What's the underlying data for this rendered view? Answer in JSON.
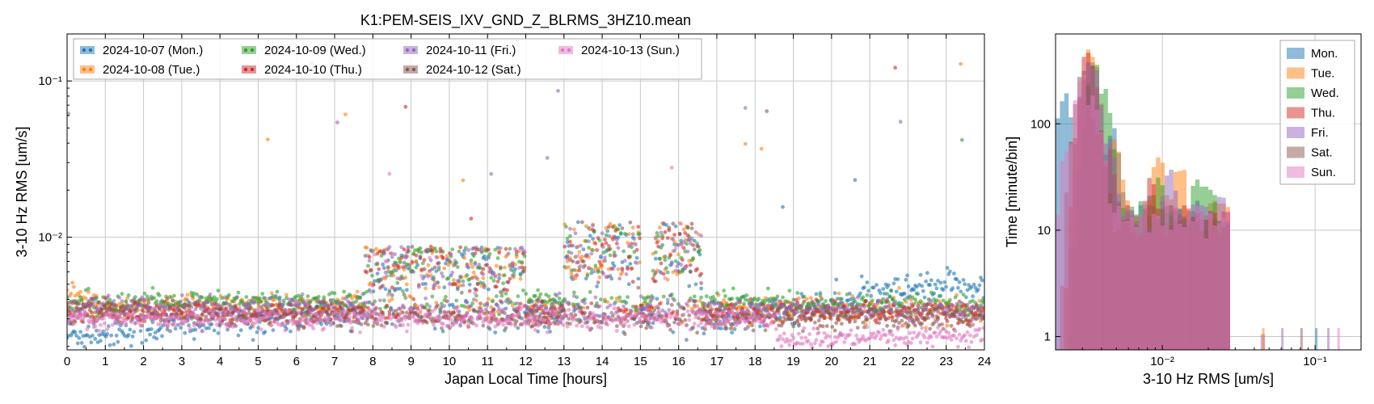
{
  "title": "K1:PEM-SEIS_IXV_GND_Z_BLRMS_3HZ10.mean",
  "colors": {
    "Mon": "#1f77b4",
    "Tue": "#ff7f0e",
    "Wed": "#2ca02c",
    "Thu": "#d62728",
    "Fri": "#9467bd",
    "Sat": "#8c564b",
    "Sun": "#e377c2"
  },
  "chart_data": [
    {
      "type": "scatter",
      "xlabel": "Japan Local Time [hours]",
      "ylabel": "3-10 Hz RMS [um/s]",
      "xlim": [
        0,
        24
      ],
      "ylim": [
        0.0019,
        0.2
      ],
      "yscale": "log",
      "x_ticks": [
        "0",
        "1",
        "2",
        "3",
        "4",
        "5",
        "6",
        "7",
        "8",
        "9",
        "10",
        "11",
        "12",
        "13",
        "14",
        "15",
        "16",
        "17",
        "18",
        "19",
        "20",
        "21",
        "22",
        "23",
        "24"
      ],
      "y_ticks": [
        {
          "value": 0.01,
          "label": "10⁻²"
        },
        {
          "value": 0.1,
          "label": "10⁻¹"
        }
      ],
      "grid": true,
      "legend_position": "top-left",
      "legend": [
        {
          "label": "2024-10-07 (Mon.)",
          "day": "Mon"
        },
        {
          "label": "2024-10-08 (Tue.)",
          "day": "Tue"
        },
        {
          "label": "2024-10-09 (Wed.)",
          "day": "Wed"
        },
        {
          "label": "2024-10-10 (Thu.)",
          "day": "Thu"
        },
        {
          "label": "2024-10-11 (Fri.)",
          "day": "Fri"
        },
        {
          "label": "2024-10-12 (Sat.)",
          "day": "Sat"
        },
        {
          "label": "2024-10-13 (Sun.)",
          "day": "Sun"
        }
      ],
      "series_profile": [
        {
          "day": "Mon",
          "segments": [
            [
              0,
              2.35
            ],
            [
              7.8,
              3.3
            ],
            [
              17,
              2.9
            ],
            [
              19.2,
              3.5
            ],
            [
              22,
              4.5
            ],
            [
              24,
              5.0
            ]
          ],
          "spread": 0.12,
          "active": 0.6
        },
        {
          "day": "Tue",
          "segments": [
            [
              0,
              4.6
            ],
            [
              0.7,
              3.6
            ],
            [
              24,
              3.4
            ]
          ],
          "spread": 0.1,
          "active": 0.7
        },
        {
          "day": "Wed",
          "segments": [
            [
              0,
              3.8
            ],
            [
              17,
              3.9
            ],
            [
              24,
              3.6
            ]
          ],
          "spread": 0.08,
          "active": 0.65
        },
        {
          "day": "Thu",
          "segments": [
            [
              0,
              3.3
            ],
            [
              24,
              3.3
            ]
          ],
          "spread": 0.08,
          "active": 0.6
        },
        {
          "day": "Fri",
          "segments": [
            [
              0,
              3.6
            ],
            [
              24,
              3.4
            ]
          ],
          "spread": 0.08,
          "active": 0.55
        },
        {
          "day": "Sat",
          "segments": [
            [
              0,
              3.3
            ],
            [
              8,
              3.0
            ],
            [
              24,
              3.0
            ]
          ],
          "spread": 0.08,
          "active": 0.15
        },
        {
          "day": "Sun",
          "segments": [
            [
              0,
              3.0
            ],
            [
              18.5,
              2.95
            ],
            [
              18.6,
              2.2
            ],
            [
              24,
              2.3
            ]
          ],
          "spread": 0.07,
          "active": 0.1
        }
      ],
      "active_windows": [
        [
          7.8,
          12.0,
          8.0
        ],
        [
          13.0,
          15.0,
          11.0
        ],
        [
          15.3,
          16.6,
          11.0
        ]
      ]
    },
    {
      "type": "bar",
      "xlabel": "3-10 Hz RMS [um/s]",
      "ylabel": "Time [minute/bin]",
      "xscale": "log",
      "yscale": "log",
      "xlim": [
        0.002,
        0.2
      ],
      "ylim": [
        0.75,
        700
      ],
      "x_ticks": [
        {
          "value": 0.01,
          "label": "10⁻²"
        },
        {
          "value": 0.1,
          "label": "10⁻¹"
        }
      ],
      "y_ticks": [
        {
          "value": 1,
          "label": "1"
        },
        {
          "value": 10,
          "label": "10"
        },
        {
          "value": 100,
          "label": "100"
        }
      ],
      "grid": true,
      "legend_position": "top-right",
      "legend": [
        "Mon.",
        "Tue.",
        "Wed.",
        "Thu.",
        "Fri.",
        "Sat.",
        "Sun."
      ],
      "series": [
        {
          "name": "Mon.",
          "day": "Mon",
          "peaks": [
            {
              "x": 0.0023,
              "h": 170
            },
            {
              "x": 0.0033,
              "h": 380
            },
            {
              "x": 0.0047,
              "h": 95
            },
            {
              "x": 0.012,
              "h": 18
            },
            {
              "x": 0.02,
              "h": 12
            }
          ]
        },
        {
          "name": "Tue.",
          "day": "Tue",
          "peaks": [
            {
              "x": 0.0034,
              "h": 460
            },
            {
              "x": 0.0048,
              "h": 80
            },
            {
              "x": 0.0095,
              "h": 45
            },
            {
              "x": 0.013,
              "h": 40
            },
            {
              "x": 0.02,
              "h": 15
            }
          ]
        },
        {
          "name": "Wed.",
          "day": "Wed",
          "peaks": [
            {
              "x": 0.0036,
              "h": 350
            },
            {
              "x": 0.0042,
              "h": 180
            },
            {
              "x": 0.0095,
              "h": 35
            },
            {
              "x": 0.017,
              "h": 30
            },
            {
              "x": 0.02,
              "h": 27
            }
          ]
        },
        {
          "name": "Thu.",
          "day": "Thu",
          "peaks": [
            {
              "x": 0.0033,
              "h": 470
            },
            {
              "x": 0.0045,
              "h": 55
            },
            {
              "x": 0.0085,
              "h": 30
            },
            {
              "x": 0.014,
              "h": 18
            }
          ]
        },
        {
          "name": "Fri.",
          "day": "Fri",
          "peaks": [
            {
              "x": 0.0034,
              "h": 420
            },
            {
              "x": 0.0045,
              "h": 70
            },
            {
              "x": 0.011,
              "h": 35
            },
            {
              "x": 0.018,
              "h": 20
            },
            {
              "x": 0.045,
              "h": 1
            }
          ]
        },
        {
          "name": "Sat.",
          "day": "Sat",
          "peaks": [
            {
              "x": 0.003,
              "h": 300
            },
            {
              "x": 0.0038,
              "h": 90
            },
            {
              "x": 0.008,
              "h": 20
            },
            {
              "x": 0.02,
              "h": 8
            }
          ]
        },
        {
          "name": "Sun.",
          "day": "Sun",
          "peaks": [
            {
              "x": 0.0021,
              "h": 4
            },
            {
              "x": 0.0025,
              "h": 80
            },
            {
              "x": 0.003,
              "h": 260
            },
            {
              "x": 0.0036,
              "h": 160
            },
            {
              "x": 0.006,
              "h": 15
            }
          ]
        }
      ]
    }
  ]
}
